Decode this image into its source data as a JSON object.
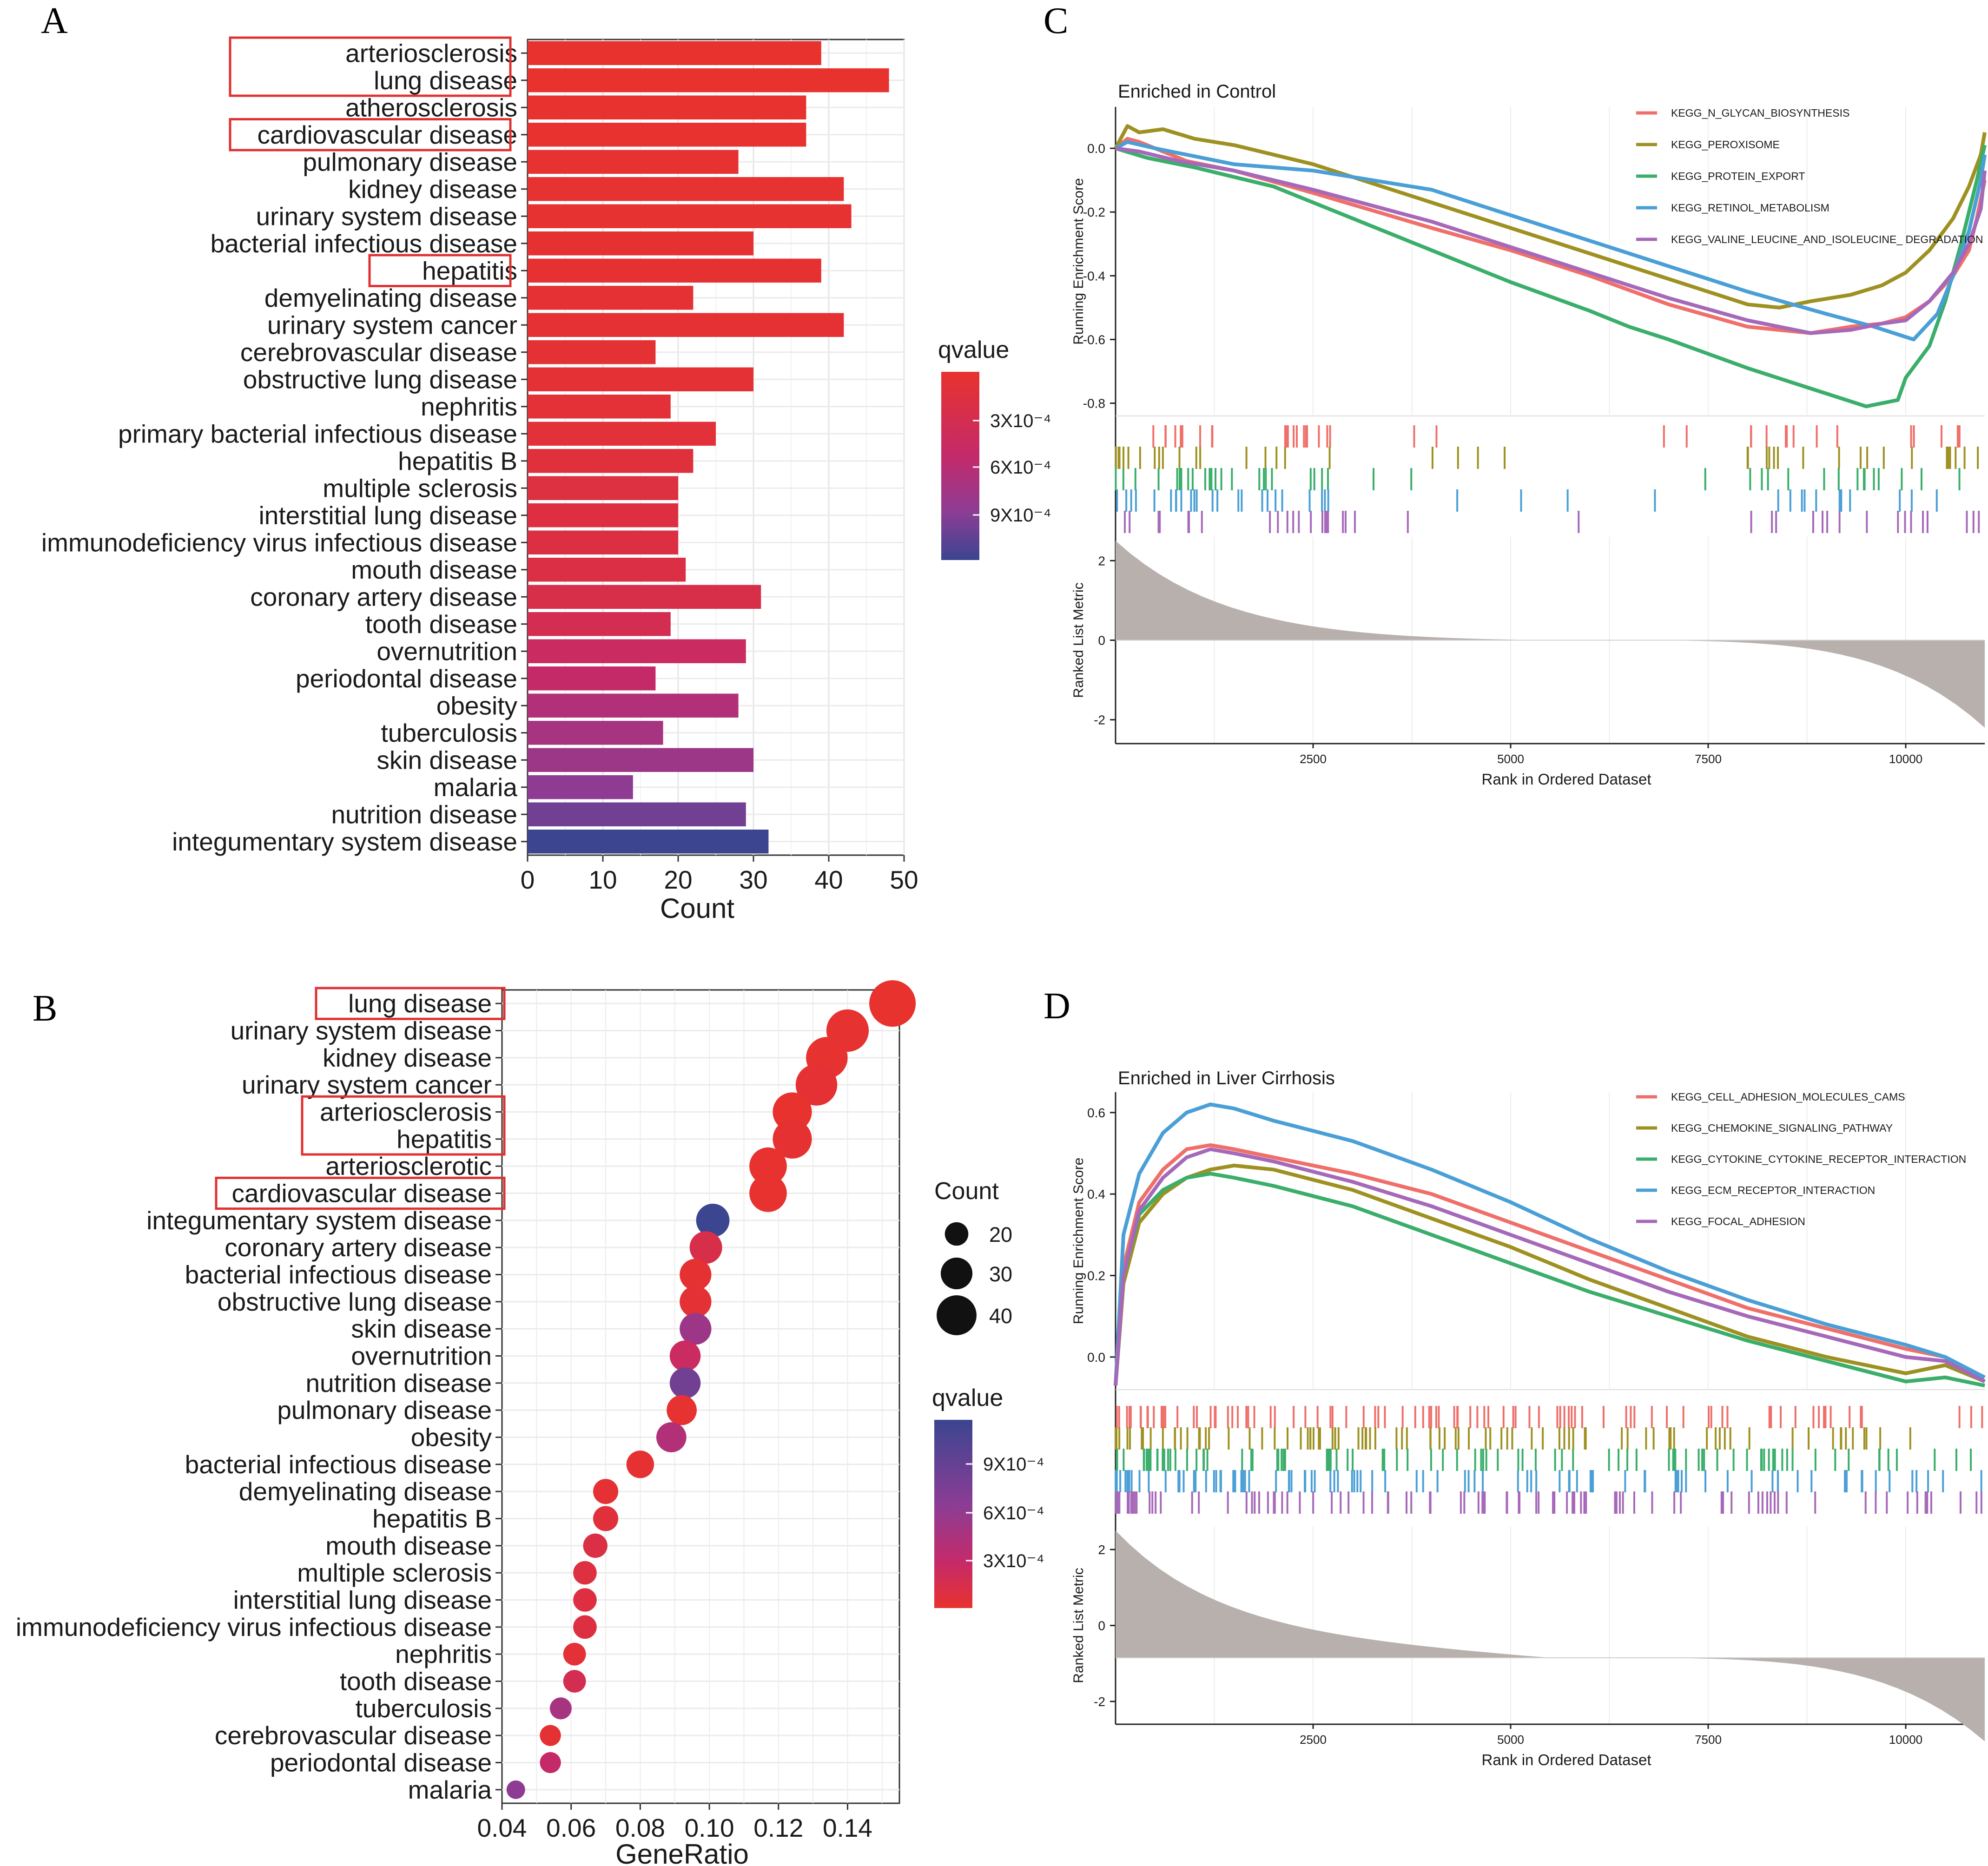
{
  "panels": {
    "a": "A",
    "b": "B",
    "c": "C",
    "d": "D"
  },
  "chart_data": [
    {
      "id": "A",
      "type": "bar",
      "orientation": "horizontal",
      "title": "",
      "xlabel": "Count",
      "ylabel": "",
      "xlim": [
        0,
        50
      ],
      "xticks": [
        "0",
        "10",
        "20",
        "30",
        "40",
        "50"
      ],
      "color_legend_title": "qvalue",
      "color_legend_ticks": [
        "3X10⁻⁴",
        "6X10⁻⁴",
        "9X10⁻⁴"
      ],
      "color_low": "#e8322e",
      "color_high": "#3b4590",
      "categories": [
        "arteriosclerosis",
        "lung disease",
        "atherosclerosis",
        "cardiovascular disease",
        "pulmonary disease",
        "kidney disease",
        "urinary system disease",
        "bacterial infectious disease",
        "hepatitis",
        "demyelinating disease",
        "urinary system cancer",
        "cerebrovascular disease",
        "obstructive lung disease",
        "nephritis",
        "primary bacterial infectious disease",
        "hepatitis B",
        "multiple sclerosis",
        "interstitial lung disease",
        "immunodeficiency virus infectious disease",
        "mouth disease",
        "coronary artery disease",
        "tooth disease",
        "overnutrition",
        "periodontal disease",
        "obesity",
        "tuberculosis",
        "skin disease",
        "malaria",
        "nutrition disease",
        "integumentary system disease"
      ],
      "values": [
        39,
        48,
        37,
        37,
        28,
        42,
        43,
        30,
        39,
        22,
        42,
        17,
        30,
        19,
        25,
        22,
        20,
        20,
        20,
        21,
        31,
        19,
        29,
        17,
        28,
        18,
        30,
        14,
        29,
        32
      ],
      "qvalue": [
        2e-05,
        2e-05,
        3e-05,
        3e-05,
        4e-05,
        4e-05,
        4e-05,
        5e-05,
        5e-05,
        6e-05,
        6e-05,
        7e-05,
        8e-05,
        9e-05,
        0.0001,
        0.00012,
        0.00016,
        0.00017,
        0.00018,
        0.0002,
        0.00024,
        0.0003,
        0.00042,
        0.00048,
        0.0006,
        0.00066,
        0.00072,
        0.0008,
        0.0009,
        0.00108
      ],
      "highlighted": [
        "arteriosclerosis",
        "lung disease",
        "cardiovascular disease",
        "hepatitis"
      ]
    },
    {
      "id": "B",
      "type": "scatter",
      "title": "",
      "xlabel": "GeneRatio",
      "ylabel": "",
      "xlim": [
        0.04,
        0.155
      ],
      "xticks": [
        "0.04",
        "0.06",
        "0.08",
        "0.10",
        "0.12",
        "0.14"
      ],
      "size_legend_title": "Count",
      "size_legend_values": [
        "20",
        "30",
        "40"
      ],
      "color_legend_title": "qvalue",
      "color_legend_ticks": [
        "9X10⁻⁴",
        "6X10⁻⁴",
        "3X10⁻⁴"
      ],
      "categories": [
        "lung disease",
        "urinary system disease",
        "kidney disease",
        "urinary system cancer",
        "arteriosclerosis",
        "hepatitis",
        "arteriosclerotic",
        "cardiovascular disease",
        "integumentary system disease",
        "coronary artery disease",
        "bacterial infectious disease",
        "obstructive lung disease",
        "skin disease",
        "overnutrition",
        "nutrition disease",
        "pulmonary disease",
        "obesity",
        "bacterial infectious disease",
        "demyelinating disease",
        "hepatitis B",
        "mouth disease",
        "multiple sclerosis",
        "interstitial lung disease",
        "immunodeficiency virus infectious disease",
        "nephritis",
        "tooth disease",
        "tuberculosis",
        "cerebrovascular disease",
        "periodontal disease",
        "malaria"
      ],
      "x": [
        0.153,
        0.14,
        0.134,
        0.131,
        0.124,
        0.124,
        0.117,
        0.117,
        0.101,
        0.099,
        0.096,
        0.096,
        0.096,
        0.093,
        0.093,
        0.092,
        0.089,
        0.08,
        0.07,
        0.07,
        0.067,
        0.064,
        0.064,
        0.064,
        0.061,
        0.061,
        0.057,
        0.054,
        0.054,
        0.044
      ],
      "count": [
        48,
        43,
        42,
        42,
        39,
        39,
        37,
        37,
        32,
        31,
        30,
        30,
        30,
        29,
        29,
        28,
        28,
        25,
        22,
        22,
        21,
        20,
        20,
        20,
        19,
        19,
        18,
        17,
        17,
        14
      ],
      "qvalue": [
        2e-05,
        4e-05,
        4e-05,
        6e-05,
        2e-05,
        5e-05,
        3e-05,
        3e-05,
        0.00108,
        0.00024,
        5e-05,
        8e-05,
        0.00072,
        0.00042,
        0.0009,
        4e-05,
        0.0006,
        5e-05,
        6e-05,
        0.00012,
        0.0002,
        0.00016,
        0.00017,
        0.00018,
        9e-05,
        0.0003,
        0.00066,
        7e-05,
        0.00048,
        0.0008
      ],
      "highlighted": [
        "lung disease",
        "arteriosclerosis",
        "hepatitis",
        "cardiovascular disease"
      ]
    },
    {
      "id": "C",
      "type": "line",
      "title": "Enriched in Control",
      "xlabel": "Rank in Ordered Dataset",
      "ylabel": "Running Enrichment Score",
      "ylabel_bottom": "Ranked List Metric",
      "xlim": [
        0,
        11000
      ],
      "xticks": [
        "2500",
        "5000",
        "7500",
        "10000"
      ],
      "ylim": [
        -0.84,
        0.13
      ],
      "yticks": [
        "0.0",
        "-0.2",
        "-0.4",
        "-0.6",
        "-0.8"
      ],
      "metric_ylim": [
        -2.6,
        2.6
      ],
      "metric_ticks": [
        "2",
        "0",
        "-2"
      ],
      "series": [
        {
          "name": "KEGG_N_GLYCAN_BIOSYNTHESIS",
          "color": "#ef6f6a",
          "x": [
            0,
            150,
            300,
            500,
            900,
            1500,
            2500,
            4000,
            5000,
            6000,
            7000,
            8000,
            8800,
            9300,
            9700,
            10000,
            10300,
            10600,
            10800,
            10900,
            11000
          ],
          "values": [
            0.0,
            0.03,
            0.02,
            0.0,
            -0.04,
            -0.07,
            -0.14,
            -0.25,
            -0.32,
            -0.4,
            -0.49,
            -0.56,
            -0.58,
            -0.56,
            -0.55,
            -0.53,
            -0.48,
            -0.4,
            -0.32,
            -0.22,
            -0.1
          ]
        },
        {
          "name": "KEGG_PEROXISOME",
          "color": "#9e9121",
          "x": [
            0,
            150,
            300,
            600,
            1000,
            1500,
            2500,
            4000,
            5000,
            6000,
            7000,
            8000,
            8400,
            8800,
            9300,
            9700,
            10000,
            10300,
            10600,
            10800,
            10950,
            11000
          ],
          "values": [
            0.0,
            0.07,
            0.05,
            0.06,
            0.03,
            0.01,
            -0.05,
            -0.17,
            -0.25,
            -0.33,
            -0.41,
            -0.49,
            -0.5,
            -0.48,
            -0.46,
            -0.43,
            -0.39,
            -0.32,
            -0.22,
            -0.12,
            -0.02,
            0.05
          ]
        },
        {
          "name": "KEGG_PROTEIN_EXPORT",
          "color": "#3aae6a",
          "x": [
            0,
            400,
            1000,
            2000,
            3000,
            4000,
            5000,
            6000,
            6500,
            7000,
            8000,
            9000,
            9500,
            9900,
            10000,
            10300,
            10500,
            10700,
            10900,
            11000
          ],
          "values": [
            0.0,
            -0.03,
            -0.06,
            -0.12,
            -0.22,
            -0.32,
            -0.42,
            -0.51,
            -0.56,
            -0.6,
            -0.69,
            -0.77,
            -0.81,
            -0.79,
            -0.72,
            -0.62,
            -0.48,
            -0.3,
            -0.1,
            0.01
          ]
        },
        {
          "name": "KEGG_RETINOL_METABOLISM",
          "color": "#4a9fd6",
          "x": [
            0,
            150,
            500,
            900,
            1500,
            2500,
            4000,
            5000,
            6000,
            7000,
            8000,
            9000,
            9600,
            10100,
            10400,
            10600,
            10800,
            10950,
            11000
          ],
          "values": [
            0.0,
            0.02,
            0.0,
            -0.02,
            -0.05,
            -0.07,
            -0.13,
            -0.21,
            -0.29,
            -0.37,
            -0.45,
            -0.52,
            -0.56,
            -0.6,
            -0.52,
            -0.4,
            -0.26,
            -0.1,
            -0.02
          ]
        },
        {
          "name": "KEGG_VALINE_LEUCINE_AND_ISOLEUCINE_ DEGRADATION",
          "color": "#a669b9",
          "x": [
            0,
            300,
            800,
            1500,
            2500,
            4000,
            5000,
            6000,
            7000,
            8000,
            8800,
            9300,
            9700,
            10000,
            10300,
            10600,
            10800,
            10950,
            11000
          ],
          "values": [
            0.0,
            -0.01,
            -0.04,
            -0.07,
            -0.13,
            -0.23,
            -0.31,
            -0.39,
            -0.47,
            -0.54,
            -0.58,
            -0.57,
            -0.55,
            -0.54,
            -0.48,
            -0.39,
            -0.3,
            -0.19,
            -0.07
          ]
        }
      ]
    },
    {
      "id": "D",
      "type": "line",
      "title": "Enriched in Liver Cirrhosis",
      "xlabel": "Rank in Ordered Dataset",
      "ylabel": "Running Enrichment Score",
      "ylabel_bottom": "Ranked List Metric",
      "xlim": [
        0,
        11000
      ],
      "xticks": [
        "2500",
        "5000",
        "7500",
        "10000"
      ],
      "ylim": [
        -0.08,
        0.65
      ],
      "yticks": [
        "0.6",
        "0.4",
        "0.2",
        "0.0"
      ],
      "metric_ylim": [
        -2.6,
        2.6
      ],
      "metric_ticks": [
        "2",
        "0",
        "-2"
      ],
      "series": [
        {
          "name": "KEGG_CELL_ADHESION_MOLECULES_CAMS",
          "color": "#ef6f6a",
          "x": [
            0,
            100,
            300,
            600,
            900,
            1200,
            1500,
            2000,
            3000,
            4000,
            5000,
            6000,
            7000,
            8000,
            9000,
            10000,
            10500,
            11000
          ],
          "values": [
            -0.07,
            0.22,
            0.38,
            0.46,
            0.51,
            0.52,
            0.51,
            0.49,
            0.45,
            0.4,
            0.33,
            0.26,
            0.19,
            0.12,
            0.07,
            0.02,
            0.0,
            -0.06
          ]
        },
        {
          "name": "KEGG_CHEMOKINE_SIGNALING_PATHWAY",
          "color": "#9e9121",
          "x": [
            0,
            100,
            300,
            600,
            900,
            1200,
            1500,
            2000,
            3000,
            4000,
            5000,
            6000,
            7000,
            8000,
            9000,
            10000,
            10500,
            11000
          ],
          "values": [
            -0.07,
            0.18,
            0.33,
            0.4,
            0.44,
            0.46,
            0.47,
            0.46,
            0.41,
            0.34,
            0.27,
            0.19,
            0.12,
            0.05,
            0.0,
            -0.04,
            -0.02,
            -0.06
          ]
        },
        {
          "name": "KEGG_CYTOKINE_CYTOKINE_RECEPTOR_INTERACTION",
          "color": "#3aae6a",
          "x": [
            0,
            100,
            300,
            600,
            900,
            1200,
            1500,
            2000,
            3000,
            4000,
            5000,
            6000,
            7000,
            8000,
            9000,
            10000,
            10500,
            11000
          ],
          "values": [
            -0.07,
            0.2,
            0.35,
            0.41,
            0.44,
            0.45,
            0.44,
            0.42,
            0.37,
            0.3,
            0.23,
            0.16,
            0.1,
            0.04,
            -0.01,
            -0.06,
            -0.05,
            -0.07
          ]
        },
        {
          "name": "KEGG_ECM_RECEPTOR_INTERACTION",
          "color": "#4a9fd6",
          "x": [
            0,
            100,
            300,
            600,
            900,
            1200,
            1500,
            2000,
            3000,
            4000,
            5000,
            6000,
            7000,
            8000,
            9000,
            10000,
            10500,
            11000
          ],
          "values": [
            -0.07,
            0.3,
            0.45,
            0.55,
            0.6,
            0.62,
            0.61,
            0.58,
            0.53,
            0.46,
            0.38,
            0.29,
            0.21,
            0.14,
            0.08,
            0.03,
            0.0,
            -0.05
          ]
        },
        {
          "name": "KEGG_FOCAL_ADHESION",
          "color": "#a669b9",
          "x": [
            0,
            100,
            300,
            600,
            900,
            1200,
            1500,
            2000,
            3000,
            4000,
            5000,
            6000,
            7000,
            8000,
            9000,
            10000,
            10500,
            11000
          ],
          "values": [
            -0.07,
            0.2,
            0.36,
            0.44,
            0.49,
            0.51,
            0.5,
            0.48,
            0.43,
            0.37,
            0.3,
            0.23,
            0.16,
            0.1,
            0.05,
            0.0,
            -0.01,
            -0.06
          ]
        }
      ]
    }
  ]
}
